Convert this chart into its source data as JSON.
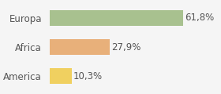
{
  "categories": [
    "America",
    "Africa",
    "Europa"
  ],
  "values": [
    10.3,
    27.9,
    61.8
  ],
  "labels": [
    "10,3%",
    "27,9%",
    "61,8%"
  ],
  "bar_colors": [
    "#f0d060",
    "#e8b07a",
    "#a8c18f"
  ],
  "background_color": "#f5f5f5",
  "xlim": [
    0,
    78
  ],
  "bar_height": 0.55,
  "label_fontsize": 8.5,
  "tick_fontsize": 8.5
}
